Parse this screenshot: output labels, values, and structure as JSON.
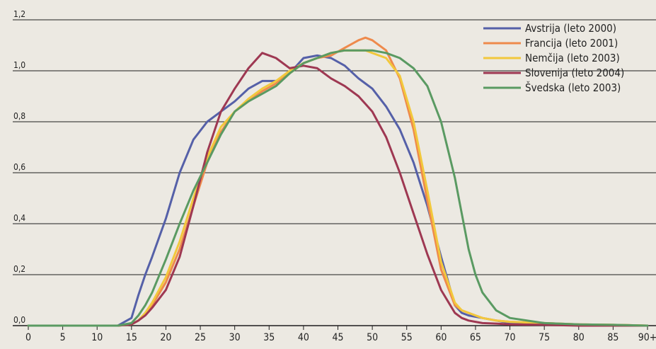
{
  "chart_data": {
    "type": "line",
    "title": "",
    "xlabel": "",
    "ylabel": "",
    "xlim": [
      0,
      90
    ],
    "ylim": [
      0,
      1.2
    ],
    "grid": true,
    "legend_position": "top-right",
    "x": [
      0,
      5,
      10,
      13,
      15,
      16,
      17,
      18,
      20,
      22,
      24,
      26,
      28,
      30,
      32,
      34,
      36,
      38,
      40,
      42,
      44,
      46,
      48,
      49,
      50,
      52,
      54,
      56,
      58,
      60,
      62,
      63,
      64,
      65,
      66,
      68,
      70,
      75,
      80,
      85,
      90
    ],
    "x_ticks": [
      {
        "value": 0,
        "label": "0"
      },
      {
        "value": 5,
        "label": "5"
      },
      {
        "value": 10,
        "label": "10"
      },
      {
        "value": 15,
        "label": "15"
      },
      {
        "value": 20,
        "label": "20"
      },
      {
        "value": 25,
        "label": "25"
      },
      {
        "value": 30,
        "label": "30"
      },
      {
        "value": 35,
        "label": "35"
      },
      {
        "value": 40,
        "label": "40"
      },
      {
        "value": 45,
        "label": "45"
      },
      {
        "value": 50,
        "label": "50"
      },
      {
        "value": 55,
        "label": "55"
      },
      {
        "value": 60,
        "label": "60"
      },
      {
        "value": 65,
        "label": "65"
      },
      {
        "value": 70,
        "label": "70"
      },
      {
        "value": 75,
        "label": "75"
      },
      {
        "value": 80,
        "label": "80"
      },
      {
        "value": 85,
        "label": "85"
      },
      {
        "value": 90,
        "label": "90+"
      }
    ],
    "y_ticks": [
      {
        "value": 0.0,
        "label": "0,0"
      },
      {
        "value": 0.2,
        "label": "0,2"
      },
      {
        "value": 0.4,
        "label": "0,4"
      },
      {
        "value": 0.6,
        "label": "0,6"
      },
      {
        "value": 0.8,
        "label": "0,8"
      },
      {
        "value": 1.0,
        "label": "1,0"
      },
      {
        "value": 1.2,
        "label": "1,2"
      }
    ],
    "series": [
      {
        "name": "Avstrija (leto 2000)",
        "color": "#5560a8",
        "values": [
          0,
          0,
          0,
          0,
          0.03,
          0.12,
          0.2,
          0.27,
          0.42,
          0.6,
          0.73,
          0.8,
          0.84,
          0.88,
          0.93,
          0.96,
          0.96,
          0.99,
          1.05,
          1.06,
          1.05,
          1.02,
          0.97,
          0.95,
          0.93,
          0.86,
          0.77,
          0.64,
          0.47,
          0.27,
          0.08,
          0.05,
          0.04,
          0.035,
          0.03,
          0.02,
          0.01,
          0.005,
          0.005,
          0,
          0
        ]
      },
      {
        "name": "Francija (leto 2001)",
        "color": "#ee8a4c",
        "values": [
          0,
          0,
          0,
          0,
          0.005,
          0.02,
          0.05,
          0.08,
          0.17,
          0.3,
          0.47,
          0.64,
          0.76,
          0.84,
          0.88,
          0.92,
          0.95,
          0.99,
          1.03,
          1.05,
          1.06,
          1.09,
          1.12,
          1.13,
          1.12,
          1.08,
          0.97,
          0.77,
          0.49,
          0.22,
          0.08,
          0.06,
          0.05,
          0.04,
          0.03,
          0.02,
          0.015,
          0.01,
          0.005,
          0.003,
          0
        ]
      },
      {
        "name": "Nemčija (leto 2003)",
        "color": "#f2c83c",
        "values": [
          0,
          0,
          0,
          0,
          0.005,
          0.02,
          0.05,
          0.09,
          0.19,
          0.33,
          0.5,
          0.66,
          0.78,
          0.84,
          0.89,
          0.93,
          0.96,
          1.0,
          1.03,
          1.05,
          1.07,
          1.08,
          1.08,
          1.08,
          1.07,
          1.05,
          0.98,
          0.8,
          0.53,
          0.25,
          0.09,
          0.06,
          0.05,
          0.04,
          0.03,
          0.02,
          0.015,
          0.01,
          0.005,
          0.003,
          0
        ]
      },
      {
        "name": "Slovenija (leto 2004)",
        "color": "#9e3852",
        "values": [
          0,
          0,
          0,
          0,
          0.005,
          0.02,
          0.04,
          0.07,
          0.14,
          0.27,
          0.47,
          0.68,
          0.84,
          0.93,
          1.01,
          1.07,
          1.05,
          1.01,
          1.02,
          1.01,
          0.97,
          0.94,
          0.9,
          0.87,
          0.84,
          0.74,
          0.6,
          0.44,
          0.28,
          0.14,
          0.05,
          0.03,
          0.02,
          0.015,
          0.01,
          0.008,
          0.005,
          0.003,
          0,
          0,
          0
        ]
      },
      {
        "name": "Švedska (leto 2003)",
        "color": "#5a9a62",
        "values": [
          0,
          0,
          0,
          0,
          0.01,
          0.04,
          0.08,
          0.13,
          0.26,
          0.4,
          0.53,
          0.64,
          0.75,
          0.84,
          0.88,
          0.91,
          0.94,
          0.99,
          1.03,
          1.05,
          1.07,
          1.08,
          1.08,
          1.08,
          1.08,
          1.07,
          1.05,
          1.01,
          0.94,
          0.8,
          0.58,
          0.44,
          0.3,
          0.2,
          0.13,
          0.06,
          0.03,
          0.01,
          0.005,
          0.003,
          0
        ]
      }
    ]
  }
}
